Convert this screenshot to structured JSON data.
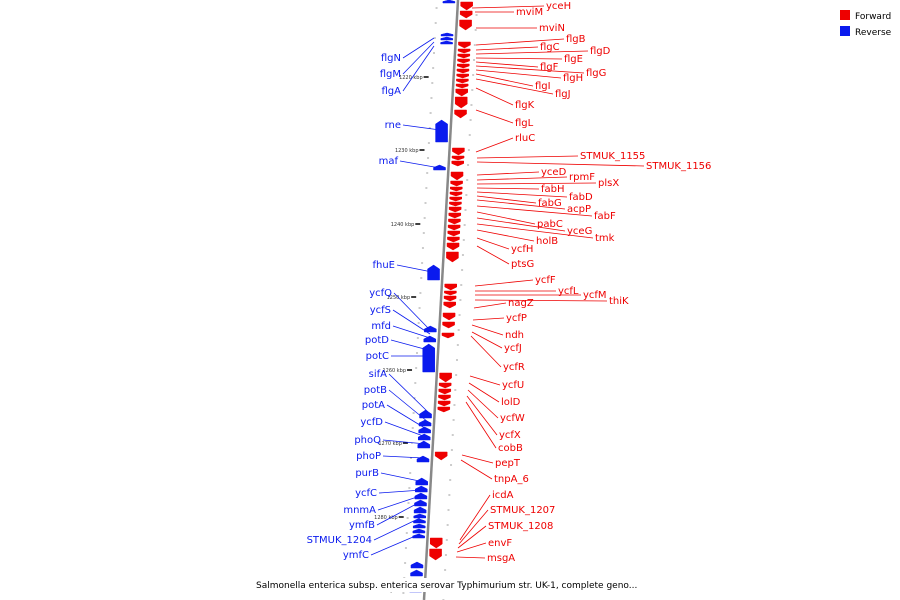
{
  "title": "Salmonella enterica subsp. enterica serovar Typhimurium str. UK-1, complete geno...",
  "legend": [
    {
      "label": "Forward",
      "color": "#ee0000"
    },
    {
      "label": "Reverse",
      "color": "#0a1aee"
    }
  ],
  "colors": {
    "forward": "#ee0000",
    "reverse": "#0a1aee",
    "backbone": "#888888"
  },
  "ticks": [
    "1220 kbp",
    "1230 kbp",
    "1240 kbp",
    "1250 kbp",
    "1260 kbp",
    "1270 kbp",
    "1280 kbp",
    "1290 kbp"
  ],
  "forward_genes": [
    "yceH",
    "mviM",
    "mviN",
    "flgB",
    "flgC",
    "flgD",
    "flgE",
    "flgF",
    "flgG",
    "flgH",
    "flgI",
    "flgJ",
    "flgK",
    "flgL",
    "rluC",
    "STMUK_1155",
    "STMUK_1156",
    "yceD",
    "rpmF",
    "plsX",
    "fabH",
    "fabD",
    "fabG",
    "acpP",
    "fabF",
    "pabC",
    "yceG",
    "tmk",
    "holB",
    "ycfH",
    "ptsG",
    "ycfF",
    "ycfL",
    "ycfM",
    "thiK",
    "nagZ",
    "ycfP",
    "ndh",
    "ycfJ",
    "ycfR",
    "ycfU",
    "lolD",
    "ycfW",
    "ycfX",
    "cobB",
    "pepT",
    "tnpA_6",
    "icdA",
    "STMUK_1207",
    "STMUK_1208",
    "envF",
    "msgA"
  ],
  "reverse_genes": [
    "flgN",
    "flgM",
    "flgA",
    "rne",
    "maf",
    "fhuE",
    "ycfQ",
    "ycfS",
    "mfd",
    "potD",
    "potC",
    "sifA",
    "potB",
    "potA",
    "ycfD",
    "phoQ",
    "phoP",
    "purB",
    "ycfC",
    "mnmA",
    "ymfB",
    "STMUK_1204",
    "ymfC"
  ]
}
